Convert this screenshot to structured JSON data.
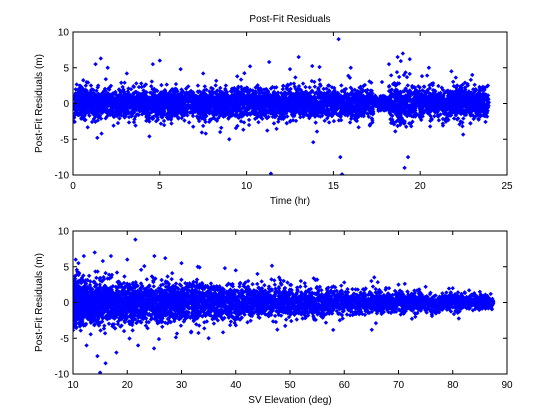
{
  "chart_data": [
    {
      "type": "scatter",
      "title": "Post-Fit Residuals",
      "xlabel": "Time (hr)",
      "ylabel": "Post-Fit Residuals (m)",
      "xlim": [
        0,
        25
      ],
      "ylim": [
        -10,
        10
      ],
      "xticks": [
        "0",
        "5",
        "10",
        "15",
        "20",
        "25"
      ],
      "yticks": [
        "-10",
        "-5",
        "0",
        "5",
        "10"
      ],
      "marker": "diamond",
      "color": "#0000ff",
      "grid": false,
      "series": [
        {
          "x": [
            0.4,
            1.3,
            1.6,
            1.4,
            2.0,
            3.1,
            4.4,
            4.6,
            5.0,
            6.2,
            7.5,
            9.0,
            10.2,
            11.3,
            11.4,
            12.5,
            13.0,
            14.2,
            15.3,
            15.4,
            15.5,
            16.0,
            17.8,
            18.2,
            18.7,
            19.0,
            19.1,
            19.3,
            19.4,
            20.5,
            21.8,
            23.0,
            23.9
          ],
          "y": [
            2.5,
            5.5,
            6.3,
            -4.8,
            5.0,
            4.2,
            -4.6,
            5.5,
            6.0,
            4.8,
            4.2,
            -5.0,
            5.2,
            5.8,
            -9.8,
            4.8,
            6.5,
            5.1,
            9.0,
            -7.5,
            -9.9,
            5.0,
            3.0,
            5.5,
            6.5,
            7.0,
            -9.0,
            -7.5,
            6.2,
            5.0,
            4.5,
            4.0,
            2.5
          ]
        }
      ]
    },
    {
      "type": "scatter",
      "title": "",
      "xlabel": "SV Elevation (deg)",
      "ylabel": "Post-Fit Residuals (m)",
      "xlim": [
        10,
        90
      ],
      "ylim": [
        -10,
        10
      ],
      "xticks": [
        "10",
        "20",
        "30",
        "40",
        "50",
        "60",
        "70",
        "80",
        "90"
      ],
      "yticks": [
        "-10",
        "-5",
        "0",
        "5",
        "10"
      ],
      "marker": "diamond",
      "color": "#0000ff",
      "grid": false,
      "series": [
        {
          "x": [
            10.5,
            11.0,
            12.0,
            12.5,
            14.0,
            14.5,
            15.0,
            15.5,
            16.0,
            17.0,
            18.0,
            20.0,
            21.5,
            22.0,
            25.0,
            27.0,
            30.0,
            33.0,
            35.0,
            38.0,
            40.0,
            44.0,
            48.0,
            52.0,
            55.0,
            60.0,
            65.0,
            70.0,
            75.0,
            80.0,
            85.0,
            87.0
          ],
          "y": [
            6.0,
            5.5,
            6.5,
            -6.0,
            7.0,
            -7.5,
            -9.8,
            5.8,
            -8.5,
            6.5,
            -7.0,
            6.0,
            8.8,
            -6.0,
            6.5,
            6.2,
            5.5,
            5.0,
            -5.0,
            4.8,
            4.5,
            4.0,
            3.5,
            3.0,
            3.2,
            2.8,
            3.0,
            2.5,
            2.2,
            2.0,
            1.5,
            1.2
          ]
        }
      ]
    }
  ]
}
